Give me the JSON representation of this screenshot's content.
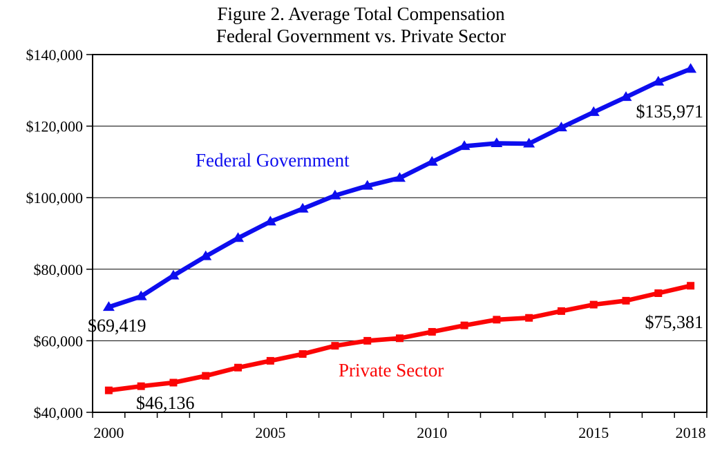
{
  "figure": {
    "title_line1": "Figure 2. Average Total Compensation",
    "title_line2": "Federal Government vs. Private Sector"
  },
  "chart_data": {
    "type": "line",
    "title": "Figure 2. Average Total Compensation",
    "subtitle": "Federal Government vs. Private Sector",
    "xlabel": "",
    "ylabel": "",
    "grid": "horizontal",
    "legend_position": "inline-labels",
    "x": [
      2000,
      2001,
      2002,
      2003,
      2004,
      2005,
      2006,
      2007,
      2008,
      2009,
      2010,
      2011,
      2012,
      2013,
      2014,
      2015,
      2016,
      2017,
      2018
    ],
    "x_tick_labels": [
      "2000",
      "2005",
      "2010",
      "2015",
      "2018"
    ],
    "ylim": [
      40000,
      140000
    ],
    "y_ticks": [
      {
        "value": 40000,
        "label": "$40,000"
      },
      {
        "value": 60000,
        "label": "$60,000"
      },
      {
        "value": 80000,
        "label": "$80,000"
      },
      {
        "value": 100000,
        "label": "$100,000"
      },
      {
        "value": 120000,
        "label": "$120,000"
      },
      {
        "value": 140000,
        "label": "$140,000"
      }
    ],
    "series": [
      {
        "name": "Federal Government",
        "color": "#0d0dee",
        "marker": "triangle",
        "values": [
          69419,
          72400,
          78200,
          83600,
          88700,
          93300,
          96900,
          100600,
          103300,
          105500,
          110000,
          114400,
          115200,
          115100,
          119600,
          123900,
          128100,
          132400,
          135971
        ]
      },
      {
        "name": "Private Sector",
        "color": "#fb0505",
        "marker": "square",
        "values": [
          46136,
          47300,
          48300,
          50200,
          52500,
          54400,
          56300,
          58600,
          60000,
          60700,
          62500,
          64300,
          65900,
          66400,
          68300,
          70100,
          71200,
          73300,
          75381
        ]
      }
    ],
    "series_labels": [
      {
        "id": "federal",
        "text": "Federal Government"
      },
      {
        "id": "private",
        "text": "Private Sector"
      }
    ],
    "annotations": [
      {
        "id": "fed-start",
        "series": "Federal Government",
        "year": 2000,
        "text": "$69,419"
      },
      {
        "id": "priv-start",
        "series": "Private Sector",
        "year": 2000,
        "text": "$46,136"
      },
      {
        "id": "fed-end",
        "series": "Federal Government",
        "year": 2018,
        "text": "$135,971"
      },
      {
        "id": "priv-end",
        "series": "Private Sector",
        "year": 2018,
        "text": "$75,381"
      }
    ]
  }
}
